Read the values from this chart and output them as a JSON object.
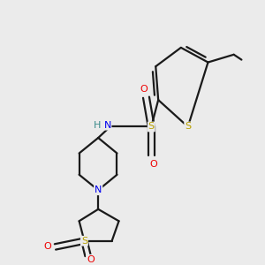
{
  "bg_color": "#ebebeb",
  "atom_colors": {
    "S": "#b8a000",
    "N": "#0000ee",
    "O": "#ee0000",
    "H": "#3a8a8a",
    "C": "#000000"
  },
  "bond_color": "#1a1a1a",
  "bond_width": 1.6
}
